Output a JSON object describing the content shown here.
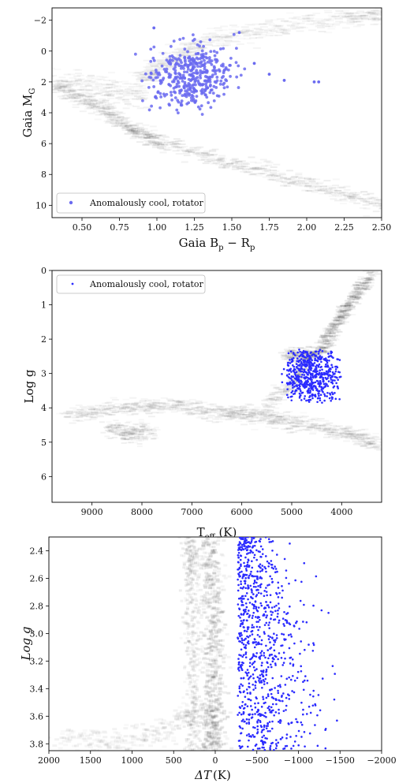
{
  "colors": {
    "points": "#2b2bff",
    "points_p1": "#6a6af0",
    "density": "#000000",
    "axis": "#000000"
  },
  "chart_data": [
    {
      "type": "scatter",
      "xlabel": "Gaia B",
      "xlabel_sub1": "p",
      "xlabel_mid": " − R",
      "xlabel_sub2": "p",
      "ylabel": "Gaia M",
      "ylabel_sub": "G",
      "xlim": [
        0.3,
        2.5
      ],
      "ylim": [
        10.8,
        -2.8
      ],
      "xticks": [
        0.5,
        0.75,
        1.0,
        1.25,
        1.5,
        1.75,
        2.0,
        2.25,
        2.5
      ],
      "xtick_labels": [
        "0.50",
        "0.75",
        "1.00",
        "1.25",
        "1.50",
        "1.75",
        "2.00",
        "2.25",
        "2.50"
      ],
      "yticks": [
        -2,
        0,
        2,
        4,
        6,
        8,
        10
      ],
      "ytick_labels": [
        "−2",
        "0",
        "2",
        "4",
        "6",
        "8",
        "10"
      ],
      "grid": false,
      "legend": "lower-left",
      "series": [
        {
          "name": "Anomalously cool, rotator",
          "cluster": {
            "x_center": 1.22,
            "x_spread": 0.13,
            "y_center": 1.6,
            "y_spread": 1.4,
            "count": 420
          },
          "outliers": [
            [
              0.98,
              -1.5
            ],
            [
              1.85,
              1.9
            ],
            [
              2.05,
              2.0
            ],
            [
              2.08,
              2.0
            ],
            [
              1.55,
              -1.2
            ],
            [
              1.65,
              0.8
            ],
            [
              1.75,
              1.5
            ]
          ]
        }
      ]
    },
    {
      "type": "scatter",
      "xlabel": "T",
      "xlabel_sub": "eff",
      "xlabel_unit": "  (K)",
      "ylabel": "Log g",
      "xlim": [
        9800,
        3200
      ],
      "ylim": [
        6.75,
        0
      ],
      "xticks": [
        9000,
        8000,
        7000,
        6000,
        5000,
        4000
      ],
      "xtick_labels": [
        "9000",
        "8000",
        "7000",
        "6000",
        "5000",
        "4000"
      ],
      "yticks": [
        0,
        1,
        2,
        3,
        4,
        5,
        6
      ],
      "ytick_labels": [
        "0",
        "1",
        "2",
        "3",
        "4",
        "5",
        "6"
      ],
      "grid": false,
      "legend": "upper-left",
      "series": [
        {
          "name": "Anomalously cool, rotator",
          "cluster": {
            "x_center": 4600,
            "x_spread": 280,
            "y_center": 3.05,
            "y_spread": 0.5,
            "count": 650
          },
          "y_range": [
            2.3,
            3.85
          ],
          "x_range": [
            4000,
            5200
          ]
        }
      ]
    },
    {
      "type": "scatter",
      "xlabel": "ΔT",
      "xlabel_unit": "(K)",
      "ylabel": "Log g",
      "xlim": [
        2000,
        -2000
      ],
      "ylim": [
        3.85,
        2.3
      ],
      "xticks": [
        2000,
        1500,
        1000,
        500,
        0,
        -500,
        -1000,
        -1500,
        -2000
      ],
      "xtick_labels": [
        "2000",
        "1500",
        "1000",
        "500",
        "0",
        "−500",
        "−1000",
        "−1500",
        "−2000"
      ],
      "yticks": [
        2.4,
        2.6,
        2.8,
        3.0,
        3.2,
        3.4,
        3.6,
        3.8
      ],
      "ytick_labels": [
        "2.4",
        "2.6",
        "2.8",
        "3.0",
        "3.2",
        "3.4",
        "3.6",
        "3.8"
      ],
      "grid": false,
      "legend": "none",
      "series": [
        {
          "name": "Anomalously cool, rotator",
          "x_range": [
            -270,
            -1550
          ],
          "y_range": [
            2.3,
            3.85
          ],
          "count": 900
        }
      ]
    }
  ]
}
